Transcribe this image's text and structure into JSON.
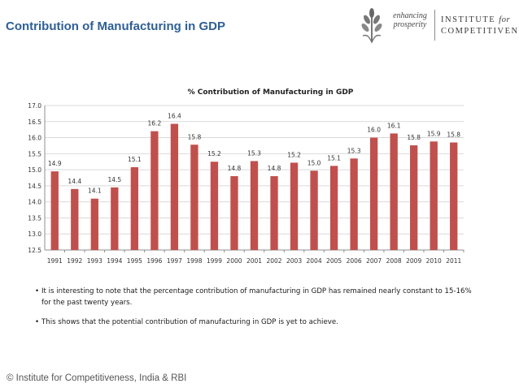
{
  "slide": {
    "title": "Contribution of Manufacturing in GDP",
    "logo": {
      "tagline_line1": "enhancing",
      "tagline_line2": "prosperity",
      "org_line1": "INSTITUTE",
      "org_for": "for",
      "org_line2": "COMPETITIVENESS"
    },
    "bullets": [
      "It is interesting to note that the percentage contribution of manufacturing in GDP has remained nearly constant to 15-16% for the past twenty years.",
      "This shows  that the potential contribution of manufacturing in GDP is yet to achieve."
    ],
    "footer": "© Institute for Competitiveness, India & RBI"
  },
  "chart_data": {
    "type": "bar",
    "title": "% Contribution of Manufacturing in GDP",
    "categories": [
      "1991",
      "1992",
      "1993",
      "1994",
      "1995",
      "1996",
      "1997",
      "1998",
      "1999",
      "2000",
      "2001",
      "2002",
      "2003",
      "2004",
      "2005",
      "2006",
      "2007",
      "2008",
      "2009",
      "2010",
      "2011"
    ],
    "values": [
      14.95,
      14.4,
      14.1,
      14.45,
      15.08,
      16.2,
      16.43,
      15.78,
      15.25,
      14.8,
      15.27,
      14.8,
      15.22,
      14.97,
      15.12,
      15.35,
      16.0,
      16.13,
      15.76,
      15.88,
      15.85
    ],
    "data_labels": [
      "14.9",
      "14.4",
      "14.1",
      "14.5",
      "15.1",
      "16.2",
      "16.4",
      "15.8",
      "15.2",
      "14.8",
      "15.3",
      "14.8",
      "15.2",
      "15.0",
      "15.1",
      "15.3",
      "16.0",
      "16.1",
      "15.8",
      "15.9",
      "15.8"
    ],
    "ylim": [
      12.5,
      17.0
    ],
    "yticks": [
      "12.5",
      "13.0",
      "13.5",
      "14.0",
      "14.5",
      "15.0",
      "15.5",
      "16.0",
      "16.5",
      "17.0"
    ],
    "grid": true,
    "colors": {
      "bar": "#c0504d",
      "grid": "#d9d9d9",
      "axis": "#8c8c8c",
      "title_blue": "#2e5f95"
    }
  }
}
